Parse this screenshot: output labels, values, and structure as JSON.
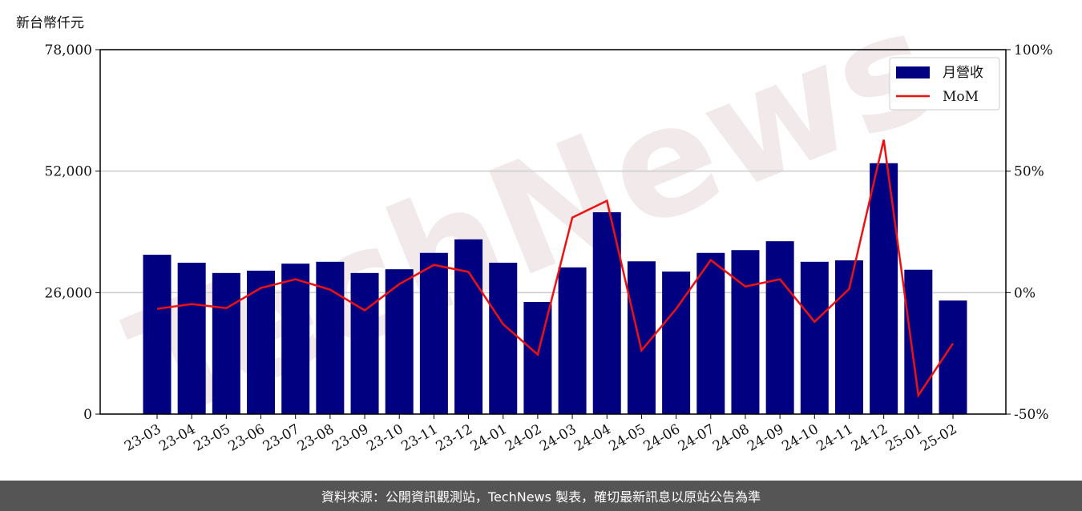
{
  "chart_data": {
    "type": "bar",
    "y_label": "新台幣仟元",
    "watermark": "TechNews",
    "source": "資料來源：公開資訊觀測站，TechNews 製表，確切最新訊息以原站公告為準",
    "categories": [
      "23-03",
      "23-04",
      "23-05",
      "23-06",
      "23-07",
      "23-08",
      "23-09",
      "23-10",
      "23-11",
      "23-12",
      "24-01",
      "24-02",
      "24-03",
      "24-04",
      "24-05",
      "24-06",
      "24-07",
      "24-08",
      "24-09",
      "24-10",
      "24-11",
      "24-12",
      "25-01",
      "25-02"
    ],
    "series": [
      {
        "name": "月營收",
        "type": "bar",
        "color": "#000080",
        "values": [
          34100,
          32400,
          30200,
          30700,
          32200,
          32600,
          30200,
          31000,
          34500,
          37400,
          32400,
          24000,
          31400,
          43200,
          32700,
          30500,
          34500,
          35100,
          37000,
          32600,
          32900,
          53700,
          30900,
          24300
        ]
      },
      {
        "name": "MoM",
        "type": "line",
        "color": "#ee1111",
        "axis": "y2",
        "values": [
          -6.7,
          -4.7,
          -6.4,
          1.9,
          5.5,
          1.2,
          -7.3,
          3.5,
          11.4,
          8.5,
          -13.0,
          -25.5,
          30.9,
          37.8,
          -23.8,
          -6.7,
          13.4,
          2.5,
          5.5,
          -12.0,
          1.5,
          62.9,
          -42.3,
          -20.9
        ]
      }
    ],
    "ylim": [
      0,
      78000
    ],
    "yticks": [
      0,
      {
        "value": 26000,
        "label": "26,000"
      },
      {
        "value": 52000,
        "label": "52,000"
      },
      {
        "value": 78000,
        "label": "78,000"
      }
    ],
    "y2lim": [
      -50,
      100
    ],
    "y2ticks": [
      {
        "value": -50,
        "label": "-50%"
      },
      {
        "value": 0,
        "label": "0%"
      },
      {
        "value": 50,
        "label": "50%"
      },
      {
        "value": 100,
        "label": "100%"
      }
    ],
    "grid": true,
    "legend": "upper right"
  }
}
